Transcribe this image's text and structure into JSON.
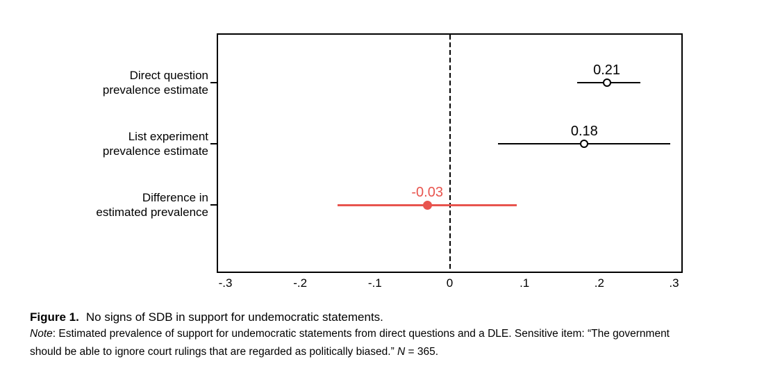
{
  "colors": {
    "black": "#000000",
    "accent_red": "#e8544e",
    "background": "#ffffff"
  },
  "caption": {
    "figure_label": "Figure 1.",
    "title": "No signs of SDB in support for undemocratic statements.",
    "note_label": "Note",
    "note_separator": ": ",
    "note_line1": "Estimated prevalence of support for undemocratic statements from direct questions and a DLE. Sensitive item: “The government",
    "note_line2": "should be able to ignore court rulings that are regarded as politically biased.” ",
    "n_symbol": "N",
    "n_rest": " = 365."
  },
  "chart_data": {
    "type": "scatter",
    "subtype": "horizontal-estimate-with-confidence-intervals",
    "title": "",
    "xlabel": "",
    "ylabel": "",
    "xlim": [
      -0.3,
      0.3
    ],
    "xticks": [
      -0.3,
      -0.2,
      -0.1,
      0,
      0.1,
      0.2,
      0.3
    ],
    "xtick_labels": [
      "-.3",
      "-.2",
      "-.1",
      "0",
      ".1",
      ".2",
      ".3"
    ],
    "reference_line_x": 0,
    "grid": false,
    "legend": "none",
    "categories": [
      "Direct question prevalence estimate",
      "List experiment prevalence estimate",
      "Difference in estimated prevalence"
    ],
    "series": [
      {
        "name": "Direct question prevalence estimate",
        "label_lines": [
          "Direct question",
          "prevalence estimate"
        ],
        "estimate": 0.21,
        "value_label": "0.21",
        "ci_low": 0.17,
        "ci_high": 0.255,
        "color": "#000000",
        "marker": "hollow-circle"
      },
      {
        "name": "List experiment prevalence estimate",
        "label_lines": [
          "List experiment",
          "prevalence estimate"
        ],
        "estimate": 0.18,
        "value_label": "0.18",
        "ci_low": 0.065,
        "ci_high": 0.295,
        "color": "#000000",
        "marker": "hollow-circle"
      },
      {
        "name": "Difference in estimated prevalence",
        "label_lines": [
          "Difference in",
          "estimated prevalence"
        ],
        "estimate": -0.03,
        "value_label": "-0.03",
        "ci_low": -0.15,
        "ci_high": 0.09,
        "color": "#e8544e",
        "marker": "filled-circle"
      }
    ]
  }
}
